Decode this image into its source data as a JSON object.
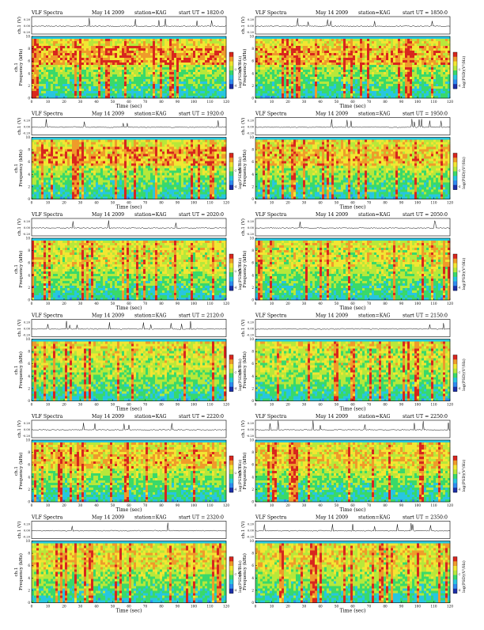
{
  "page": {
    "header_left": "VLF Spectra",
    "date": "May 14 2009",
    "station": "station=KAG"
  },
  "shared": {
    "x_axis_label": "Time (sec)",
    "x_ticks": [
      "0",
      "10",
      "20",
      "30",
      "40",
      "50",
      "60",
      "70",
      "80",
      "90",
      "100",
      "110",
      "120"
    ],
    "ch_label": "ch.1 (V)",
    "ch_ticks": [
      "0.20",
      "0.00",
      "-0.20"
    ],
    "y_axis_label_line1": "ch.1",
    "y_axis_label_line2": "Frequency  (kHz)",
    "y_ticks": [
      "0",
      "2",
      "4",
      "6",
      "8",
      "10"
    ],
    "colorbar_label": "log(PSD)(V²/Hz)",
    "colorbar_ticks": [
      "-2",
      "-4"
    ],
    "palette": [
      "#1a2ea8",
      "#2f8cf0",
      "#27c6e0",
      "#39d96a",
      "#b7e83a",
      "#f2e632",
      "#ef9b2a",
      "#d8261e"
    ]
  },
  "chart_data": [
    {
      "type": "heatmap",
      "start_ut": "start UT = 1820:0",
      "title": "VLF Spectra   May 14 2009   station=KAG   start UT = 1820:0",
      "xlabel": "Time (sec)",
      "ylabel": "Frequency (kHz)",
      "xlim": [
        0,
        120
      ],
      "ylim": [
        0,
        10
      ],
      "band_khz": [
        5.5,
        8.5
      ],
      "intensity": 0.82
    },
    {
      "type": "heatmap",
      "start_ut": "start UT = 1850:0",
      "title": "VLF Spectra   May 14 2009   station=KAG   start UT = 1850:0",
      "xlabel": "Time (sec)",
      "ylabel": "Frequency (kHz)",
      "xlim": [
        0,
        120
      ],
      "ylim": [
        0,
        10
      ],
      "band_khz": [
        5.5,
        8.5
      ],
      "intensity": 0.78
    },
    {
      "type": "heatmap",
      "start_ut": "start UT = 1920:0",
      "title": "VLF Spectra   May 14 2009   station=KAG   start UT = 1920:0",
      "xlabel": "Time (sec)",
      "ylabel": "Frequency (kHz)",
      "xlim": [
        0,
        120
      ],
      "ylim": [
        0,
        10
      ],
      "band_khz": [
        5.5,
        8.5
      ],
      "intensity": 0.8
    },
    {
      "type": "heatmap",
      "start_ut": "start UT = 1950:0",
      "title": "VLF Spectra   May 14 2009   station=KAG   start UT = 1950:0",
      "xlabel": "Time (sec)",
      "ylabel": "Frequency (kHz)",
      "xlim": [
        0,
        120
      ],
      "ylim": [
        0,
        10
      ],
      "band_khz": [
        5.5,
        8.5
      ],
      "intensity": 0.74
    },
    {
      "type": "heatmap",
      "start_ut": "start UT = 2020:0",
      "title": "VLF Spectra   May 14 2009   station=KAG   start UT = 2020:0",
      "xlabel": "Time (sec)",
      "ylabel": "Frequency (kHz)",
      "xlim": [
        0,
        120
      ],
      "ylim": [
        0,
        10
      ],
      "band_khz": [
        5.5,
        8.5
      ],
      "intensity": 0.62
    },
    {
      "type": "heatmap",
      "start_ut": "start UT = 2050:0",
      "title": "VLF Spectra   May 14 2009   station=KAG   start UT = 2050:0",
      "xlabel": "Time (sec)",
      "ylabel": "Frequency (kHz)",
      "xlim": [
        0,
        120
      ],
      "ylim": [
        0,
        10
      ],
      "band_khz": [
        5.5,
        8.5
      ],
      "intensity": 0.6
    },
    {
      "type": "heatmap",
      "start_ut": "start UT = 2120:0",
      "title": "VLF Spectra   May 14 2009   station=KAG   start UT = 2120:0",
      "xlabel": "Time (sec)",
      "ylabel": "Frequency (kHz)",
      "xlim": [
        0,
        120
      ],
      "ylim": [
        0,
        10
      ],
      "band_khz": [
        5.5,
        8.5
      ],
      "intensity": 0.58
    },
    {
      "type": "heatmap",
      "start_ut": "start UT = 2150:0",
      "title": "VLF Spectra   May 14 2009   station=KAG   start UT = 2150:0",
      "xlabel": "Time (sec)",
      "ylabel": "Frequency (kHz)",
      "xlim": [
        0,
        120
      ],
      "ylim": [
        0,
        10
      ],
      "band_khz": [
        5.5,
        8.5
      ],
      "intensity": 0.56
    },
    {
      "type": "heatmap",
      "start_ut": "start UT = 2220:0",
      "title": "VLF Spectra   May 14 2009   station=KAG   start UT = 2220:0",
      "xlabel": "Time (sec)",
      "ylabel": "Frequency (kHz)",
      "xlim": [
        0,
        120
      ],
      "ylim": [
        0,
        10
      ],
      "band_khz": [
        5.5,
        8.5
      ],
      "intensity": 0.72
    },
    {
      "type": "heatmap",
      "start_ut": "start UT = 2250:0",
      "title": "VLF Spectra   May 14 2009   station=KAG   start UT = 2250:0",
      "xlabel": "Time (sec)",
      "ylabel": "Frequency (kHz)",
      "xlim": [
        0,
        120
      ],
      "ylim": [
        0,
        10
      ],
      "band_khz": [
        5.5,
        8.5
      ],
      "intensity": 0.7
    },
    {
      "type": "heatmap",
      "start_ut": "start UT = 2320:0",
      "title": "VLF Spectra   May 14 2009   station=KAG   start UT = 2320:0",
      "xlabel": "Time (sec)",
      "ylabel": "Frequency (kHz)",
      "xlim": [
        0,
        120
      ],
      "ylim": [
        0,
        10
      ],
      "band_khz": [
        5.5,
        8.5
      ],
      "intensity": 0.66
    },
    {
      "type": "heatmap",
      "start_ut": "start UT = 2350:0",
      "title": "VLF Spectra   May 14 2009   station=KAG   start UT = 2350:0",
      "xlabel": "Time (sec)",
      "ylabel": "Frequency (kHz)",
      "xlim": [
        0,
        120
      ],
      "ylim": [
        0,
        10
      ],
      "band_khz": [
        5.5,
        8.5
      ],
      "intensity": 0.64
    }
  ]
}
